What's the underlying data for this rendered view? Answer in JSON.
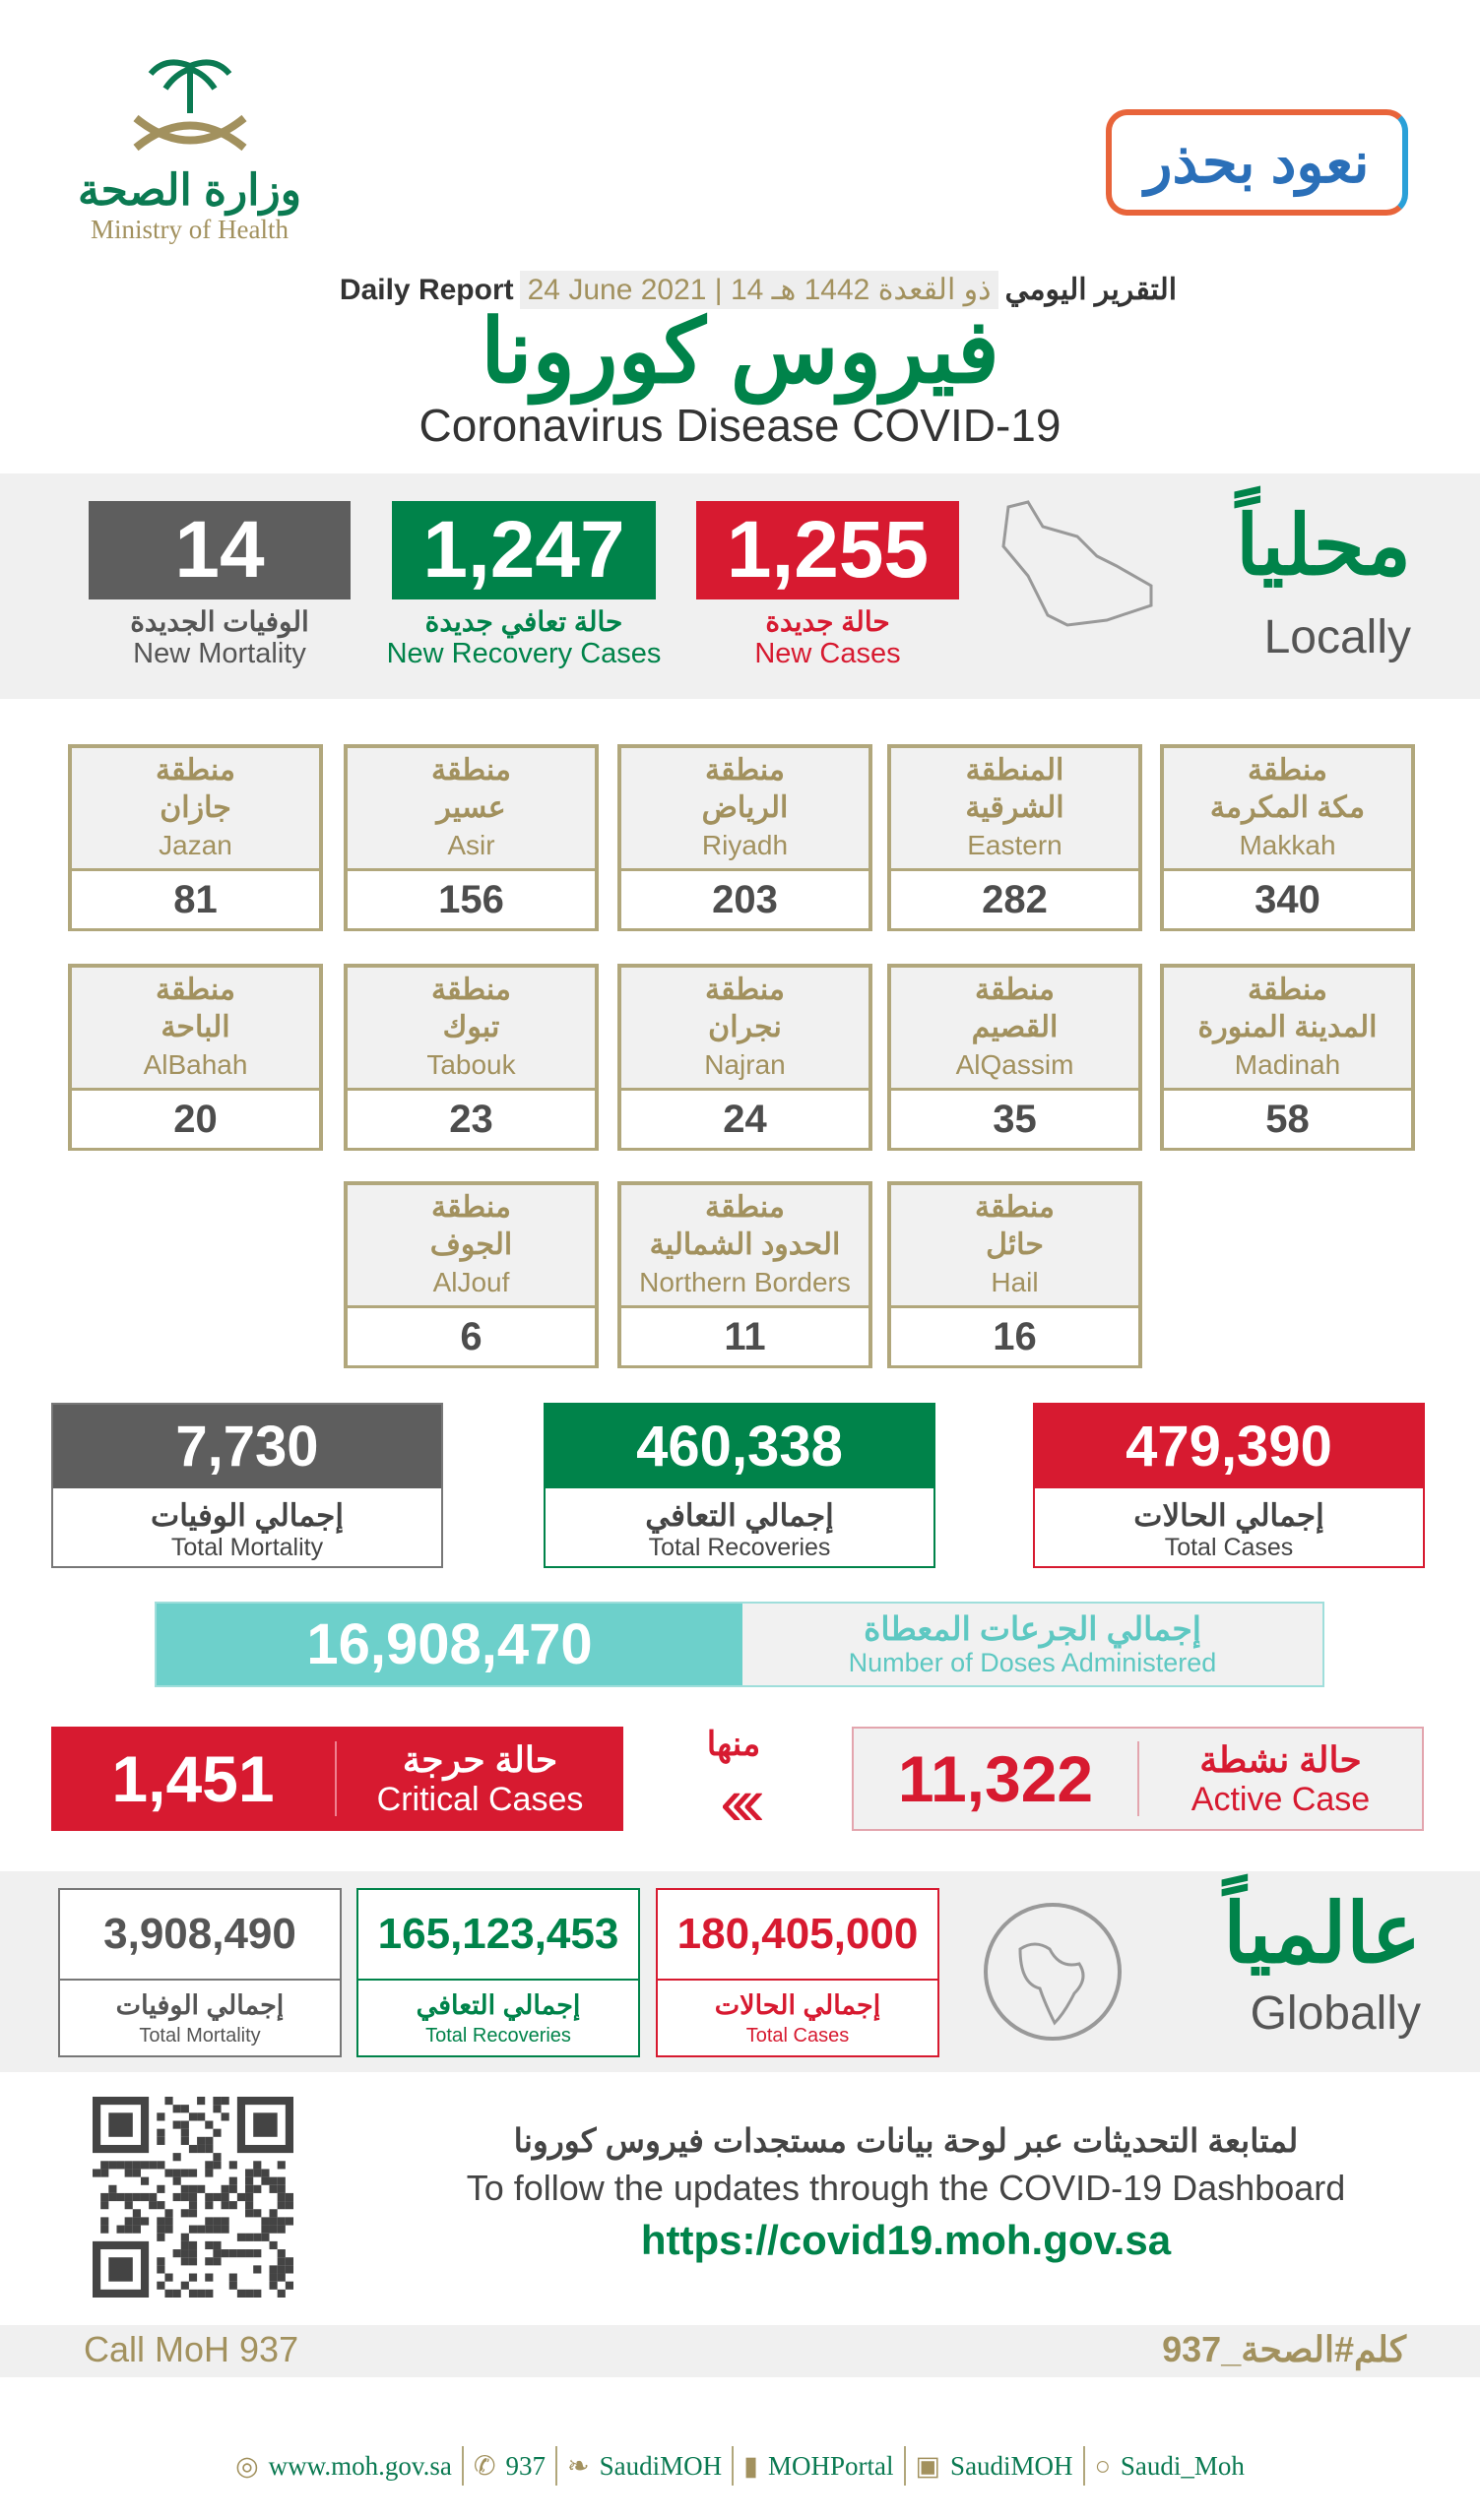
{
  "header": {
    "ministry_ar": "وزارة الصحة",
    "ministry_en": "Ministry of Health",
    "campaign_ar": "نعود بحذر",
    "report_en": "Daily Report",
    "report_date_en": "24 June 2021",
    "report_date_hijri": "14 ذو القعدة 1442 هـ",
    "report_ar": "التقرير اليومي",
    "title_ar": "فيروس كورونا",
    "title_en": "Coronavirus Disease COVID-19"
  },
  "local": {
    "heading_ar": "محلياً",
    "heading_en": "Locally",
    "new_mortality": {
      "value": "14",
      "ar": "الوفيات الجديدة",
      "en": "New Mortality"
    },
    "new_recovery": {
      "value": "1,247",
      "ar": "حالة تعافي جديدة",
      "en": "New Recovery Cases"
    },
    "new_cases": {
      "value": "1,255",
      "ar": "حالة جديدة",
      "en": "New Cases"
    }
  },
  "regions": [
    {
      "ar1": "منطقة",
      "ar2": "مكة المكرمة",
      "en": "Makkah",
      "value": "340"
    },
    {
      "ar1": "المنطقة",
      "ar2": "الشرقية",
      "en": "Eastern",
      "value": "282"
    },
    {
      "ar1": "منطقة",
      "ar2": "الرياض",
      "en": "Riyadh",
      "value": "203"
    },
    {
      "ar1": "منطقة",
      "ar2": "عسير",
      "en": "Asir",
      "value": "156"
    },
    {
      "ar1": "منطقة",
      "ar2": "جازان",
      "en": "Jazan",
      "value": "81"
    },
    {
      "ar1": "منطقة",
      "ar2": "المدينة المنورة",
      "en": "Madinah",
      "value": "58"
    },
    {
      "ar1": "منطقة",
      "ar2": "القصيم",
      "en": "AlQassim",
      "value": "35"
    },
    {
      "ar1": "منطقة",
      "ar2": "نجران",
      "en": "Najran",
      "value": "24"
    },
    {
      "ar1": "منطقة",
      "ar2": "تبوك",
      "en": "Tabouk",
      "value": "23"
    },
    {
      "ar1": "منطقة",
      "ar2": "الباحة",
      "en": "AlBahah",
      "value": "20"
    },
    {
      "ar1": "منطقة",
      "ar2": "حائل",
      "en": "Hail",
      "value": "16"
    },
    {
      "ar1": "منطقة",
      "ar2": "الحدود الشمالية",
      "en": "Northern Borders",
      "value": "11"
    },
    {
      "ar1": "منطقة",
      "ar2": "الجوف",
      "en": "AlJouf",
      "value": "6"
    }
  ],
  "totals": {
    "mortality": {
      "value": "7,730",
      "ar": "إجمالي الوفيات",
      "en": "Total Mortality"
    },
    "recoveries": {
      "value": "460,338",
      "ar": "إجمالي التعافي",
      "en": "Total Recoveries"
    },
    "cases": {
      "value": "479,390",
      "ar": "إجمالي الحالات",
      "en": "Total Cases"
    }
  },
  "doses": {
    "value": "16,908,470",
    "ar": "إجمالي الجرعات المعطاة",
    "en": "Number of Doses Administered"
  },
  "active": {
    "value": "11,322",
    "ar": "حالة نشطة",
    "en": "Active Case"
  },
  "of_which_ar": "منها",
  "critical": {
    "value": "1,451",
    "ar": "حالة حرجة",
    "en": "Critical Cases"
  },
  "global": {
    "heading_ar": "عالمياً",
    "heading_en": "Globally",
    "mortality": {
      "value": "3,908,490",
      "ar": "إجمالي الوفيات",
      "en": "Total Mortality"
    },
    "recoveries": {
      "value": "165,123,453",
      "ar": "إجمالي التعافي",
      "en": "Total Recoveries"
    },
    "cases": {
      "value": "180,405,000",
      "ar": "إجمالي الحالات",
      "en": "Total Cases"
    }
  },
  "dashboard": {
    "line_ar": "لمتابعة التحديثات عبر لوحة بيانات مستجدات فيروس كورونا",
    "line_en": "To follow the updates through the COVID-19 Dashboard",
    "url": "https://covid19.moh.gov.sa"
  },
  "call": {
    "en": "Call MoH 937",
    "ar": "كلم#الصحة_937"
  },
  "footer": {
    "website": "www.moh.gov.sa",
    "phone": "937",
    "twitter": "SaudiMOH",
    "youtube": "MOHPortal",
    "facebook": "SaudiMOH",
    "snapchat": "Saudi_Moh"
  },
  "colors": {
    "green": "#00834a",
    "red": "#d71a30",
    "gray": "#5e5e5e",
    "gold": "#a2915e",
    "teal": "#6dd0cb"
  }
}
